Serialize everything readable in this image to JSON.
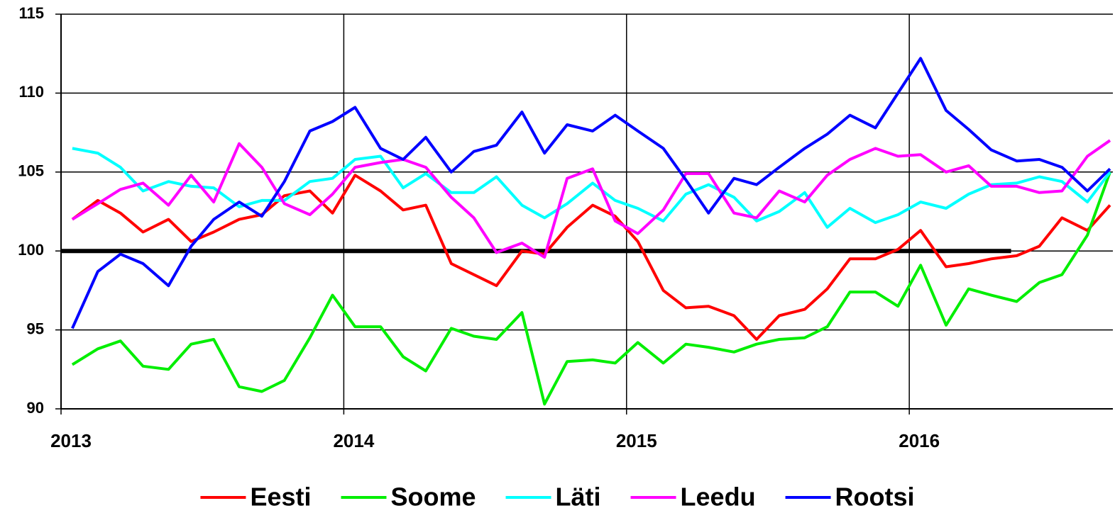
{
  "chart_data": {
    "type": "line",
    "x": [
      2013.04,
      2013.13,
      2013.21,
      2013.29,
      2013.38,
      2013.46,
      2013.54,
      2013.63,
      2013.71,
      2013.79,
      2013.88,
      2013.96,
      2014.04,
      2014.13,
      2014.21,
      2014.29,
      2014.38,
      2014.46,
      2014.54,
      2014.63,
      2014.71,
      2014.79,
      2014.88,
      2014.96,
      2015.04,
      2015.13,
      2015.21,
      2015.29,
      2015.38,
      2015.46,
      2015.54,
      2015.63,
      2015.71,
      2015.79,
      2015.88,
      2015.96,
      2016.04,
      2016.13,
      2016.21,
      2016.29,
      2016.38,
      2016.46,
      2016.54,
      2016.63,
      2016.71
    ],
    "series": [
      {
        "name": "Eesti",
        "color": "#ff0000",
        "values": [
          102.0,
          103.2,
          102.4,
          101.2,
          102.0,
          100.6,
          101.2,
          102.0,
          102.3,
          103.5,
          103.8,
          102.4,
          104.8,
          103.8,
          102.6,
          102.9,
          99.2,
          98.5,
          97.8,
          100.0,
          99.8,
          101.5,
          102.9,
          102.2,
          100.6,
          97.5,
          96.4,
          96.5,
          95.9,
          94.4,
          95.9,
          96.3,
          97.6,
          99.5,
          99.5,
          100.1,
          101.3,
          99.0,
          99.2,
          99.5,
          99.7,
          100.3,
          102.1,
          101.3,
          102.9
        ]
      },
      {
        "name": "Soome",
        "color": "#00ee00",
        "values": [
          92.8,
          93.8,
          94.3,
          92.7,
          92.5,
          94.1,
          94.4,
          91.4,
          91.1,
          91.8,
          94.5,
          97.2,
          95.2,
          95.2,
          93.3,
          92.4,
          95.1,
          94.6,
          94.4,
          96.1,
          90.3,
          93.0,
          93.1,
          92.9,
          94.2,
          92.9,
          94.1,
          93.9,
          93.6,
          94.1,
          94.4,
          94.5,
          95.2,
          97.4,
          97.4,
          96.5,
          99.1,
          95.3,
          97.6,
          97.2,
          96.8,
          98.0,
          98.5,
          101.0,
          105.0
        ]
      },
      {
        "name": "Läti",
        "color": "#00ffff",
        "values": [
          106.5,
          106.2,
          105.3,
          103.8,
          104.4,
          104.1,
          104.0,
          102.8,
          103.2,
          103.2,
          104.4,
          104.6,
          105.8,
          106.0,
          104.0,
          104.9,
          103.7,
          103.7,
          104.7,
          102.9,
          102.1,
          103.0,
          104.3,
          103.2,
          102.7,
          101.9,
          103.6,
          104.2,
          103.4,
          101.9,
          102.5,
          103.7,
          101.5,
          102.7,
          101.8,
          102.3,
          103.1,
          102.7,
          103.6,
          104.2,
          104.3,
          104.7,
          104.4,
          103.1,
          105.0
        ]
      },
      {
        "name": "Leedu",
        "color": "#ff00ff",
        "values": [
          102.0,
          103.0,
          103.9,
          104.3,
          102.9,
          104.8,
          103.1,
          106.8,
          105.3,
          103.0,
          102.3,
          103.6,
          105.3,
          105.6,
          105.8,
          105.3,
          103.4,
          102.1,
          99.9,
          100.5,
          99.6,
          104.6,
          105.2,
          101.9,
          101.1,
          102.6,
          104.9,
          104.9,
          102.4,
          102.1,
          103.8,
          103.1,
          104.8,
          105.8,
          106.5,
          106.0,
          106.1,
          105.0,
          105.4,
          104.1,
          104.1,
          103.7,
          103.8,
          106.0,
          107.0
        ]
      },
      {
        "name": "Rootsi",
        "color": "#0000ff",
        "values": [
          95.1,
          98.7,
          99.8,
          99.2,
          97.8,
          100.3,
          102.0,
          103.1,
          102.2,
          104.4,
          107.6,
          108.2,
          109.1,
          106.5,
          105.8,
          107.2,
          105.0,
          106.3,
          106.7,
          108.8,
          106.2,
          108.0,
          107.6,
          108.6,
          107.6,
          106.5,
          104.5,
          102.4,
          104.6,
          104.2,
          105.3,
          106.5,
          107.4,
          108.6,
          107.8,
          110.0,
          112.2,
          108.9,
          107.7,
          106.4,
          105.7,
          105.8,
          105.3,
          103.8,
          105.2
        ]
      }
    ],
    "reference_line": {
      "value": 100,
      "x_end": 2016.36,
      "color": "#000000"
    },
    "xlim": [
      2013,
      2016.72
    ],
    "xticks": [
      2013,
      2014,
      2015,
      2016
    ],
    "ylim": [
      90,
      115
    ],
    "yticks": [
      90,
      95,
      100,
      105,
      110,
      115
    ],
    "grid": true,
    "legend": "bottom"
  }
}
